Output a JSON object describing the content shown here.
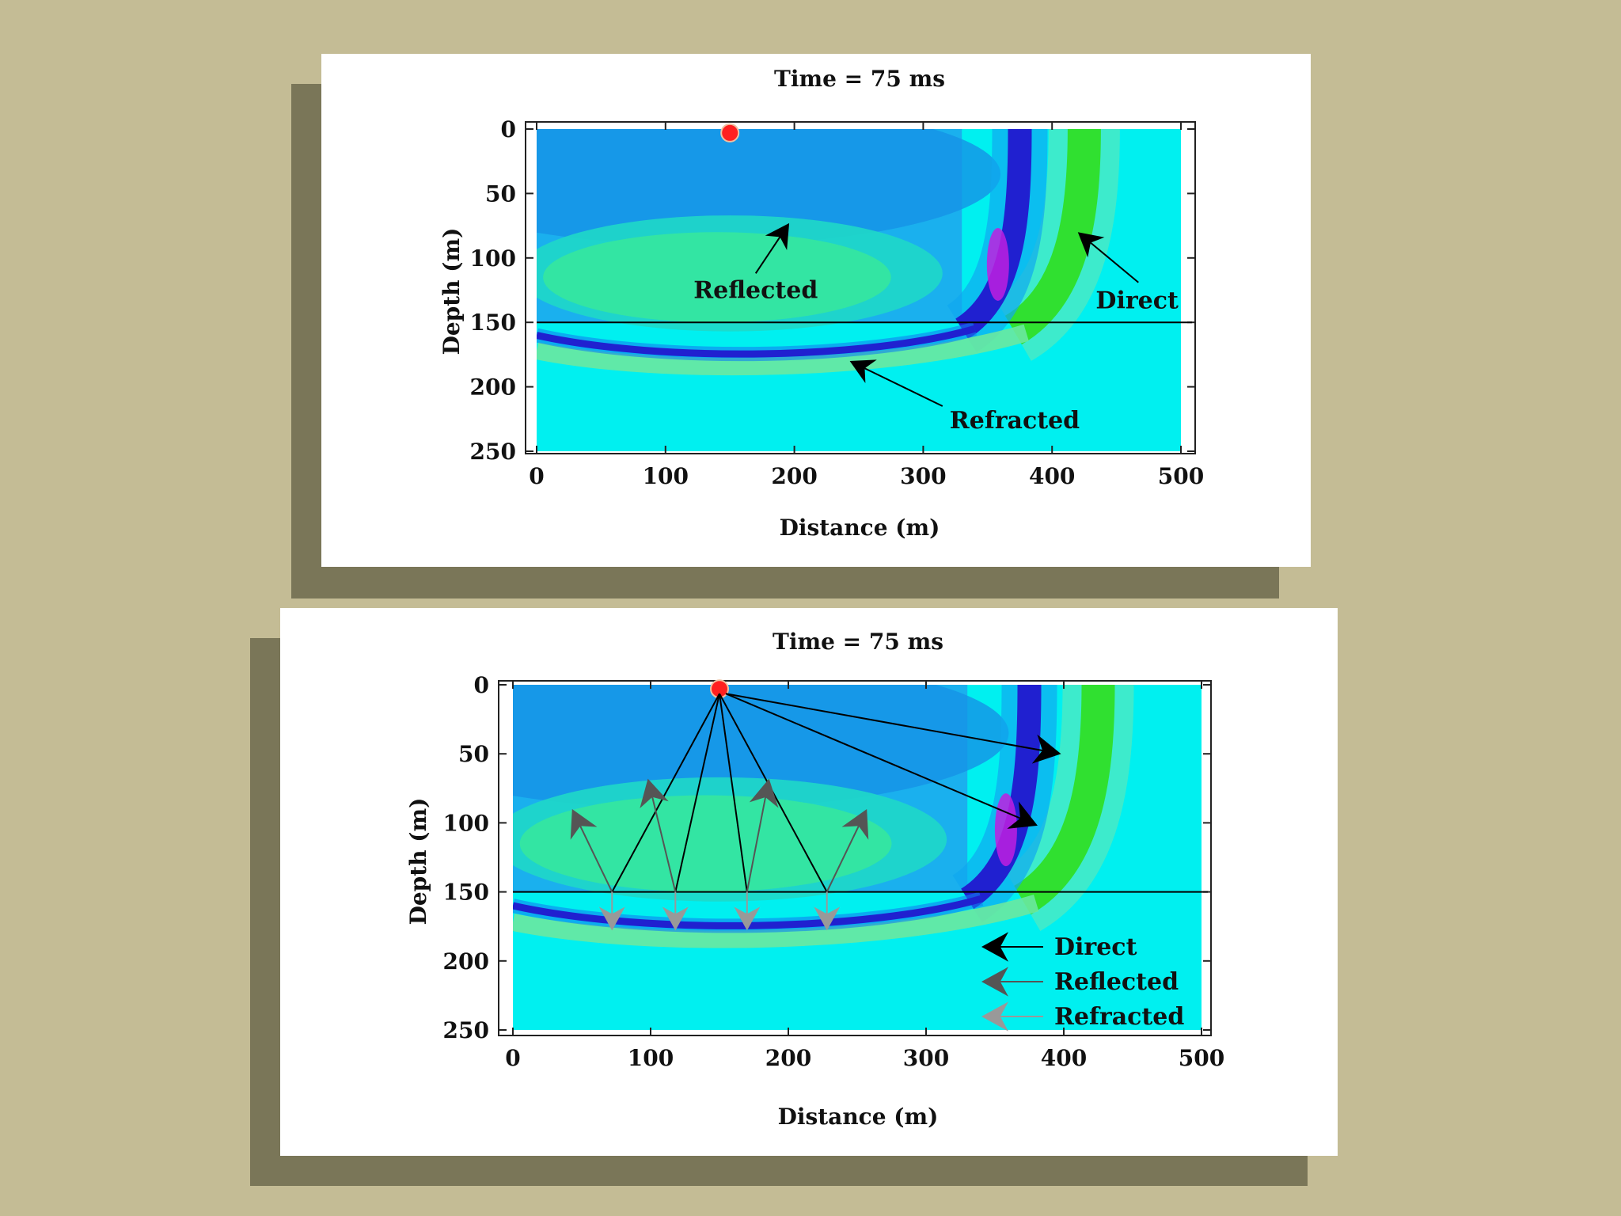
{
  "colors": {
    "background": "#c4bc95",
    "shadow": "#7a7658",
    "panel": "#ffffff",
    "field_base": "#00f0f0",
    "reflected_band": "#33e890",
    "wavefront_dark": "#2020d0",
    "wavefront_peak": "#c020e0",
    "direct_band": "#30e030",
    "source": "#ff2020",
    "arrow_direct": "#000000",
    "arrow_reflected": "#555555",
    "arrow_refracted": "#999999"
  },
  "panels": [
    {
      "title": "Time = 75 ms",
      "xlabel": "Distance (m)",
      "ylabel": "Depth (m)",
      "x_ticks": [
        "0",
        "100",
        "200",
        "300",
        "400",
        "500"
      ],
      "y_ticks": [
        "0",
        "50",
        "100",
        "150",
        "200",
        "250"
      ],
      "x_range": [
        0,
        500
      ],
      "y_range": [
        0,
        250
      ],
      "interface_depth": 150,
      "source": {
        "x": 150,
        "y": 3
      },
      "annotations": [
        {
          "label": "Reflected",
          "x": 170,
          "y": 125,
          "arrow_from": [
            170,
            112
          ],
          "arrow_to": [
            196,
            73
          ]
        },
        {
          "label": "Direct",
          "x": 466,
          "y": 133,
          "arrow_from": [
            467,
            119
          ],
          "arrow_to": [
            420,
            80
          ]
        },
        {
          "label": "Refracted",
          "x": 371,
          "y": 226,
          "arrow_from": [
            315,
            215
          ],
          "arrow_to": [
            243,
            180
          ]
        }
      ]
    },
    {
      "title": "Time = 75 ms",
      "xlabel": "Distance (m)",
      "ylabel": "Depth (m)",
      "x_ticks": [
        "0",
        "100",
        "200",
        "300",
        "400",
        "500"
      ],
      "y_ticks": [
        "0",
        "50",
        "100",
        "150",
        "200",
        "250"
      ],
      "x_range": [
        0,
        500
      ],
      "y_range": [
        0,
        250
      ],
      "interface_depth": 150,
      "source": {
        "x": 150,
        "y": 3
      },
      "direct_rays": [
        {
          "to": [
            398,
            50
          ]
        },
        {
          "to": [
            381,
            102
          ]
        }
      ],
      "reflection_points": [
        72,
        118,
        170,
        228
      ],
      "reflected_arrows": [
        {
          "from": 72,
          "to": [
            43,
            90
          ]
        },
        {
          "from": 118,
          "to": [
            98,
            68
          ]
        },
        {
          "from": 170,
          "to": [
            186,
            68
          ]
        },
        {
          "from": 228,
          "to": [
            257,
            90
          ]
        }
      ],
      "refracted_depth": 178,
      "legend": [
        {
          "label": "Direct",
          "type": "direct"
        },
        {
          "label": "Reflected",
          "type": "reflected"
        },
        {
          "label": "Refracted",
          "type": "refracted"
        }
      ]
    }
  ]
}
